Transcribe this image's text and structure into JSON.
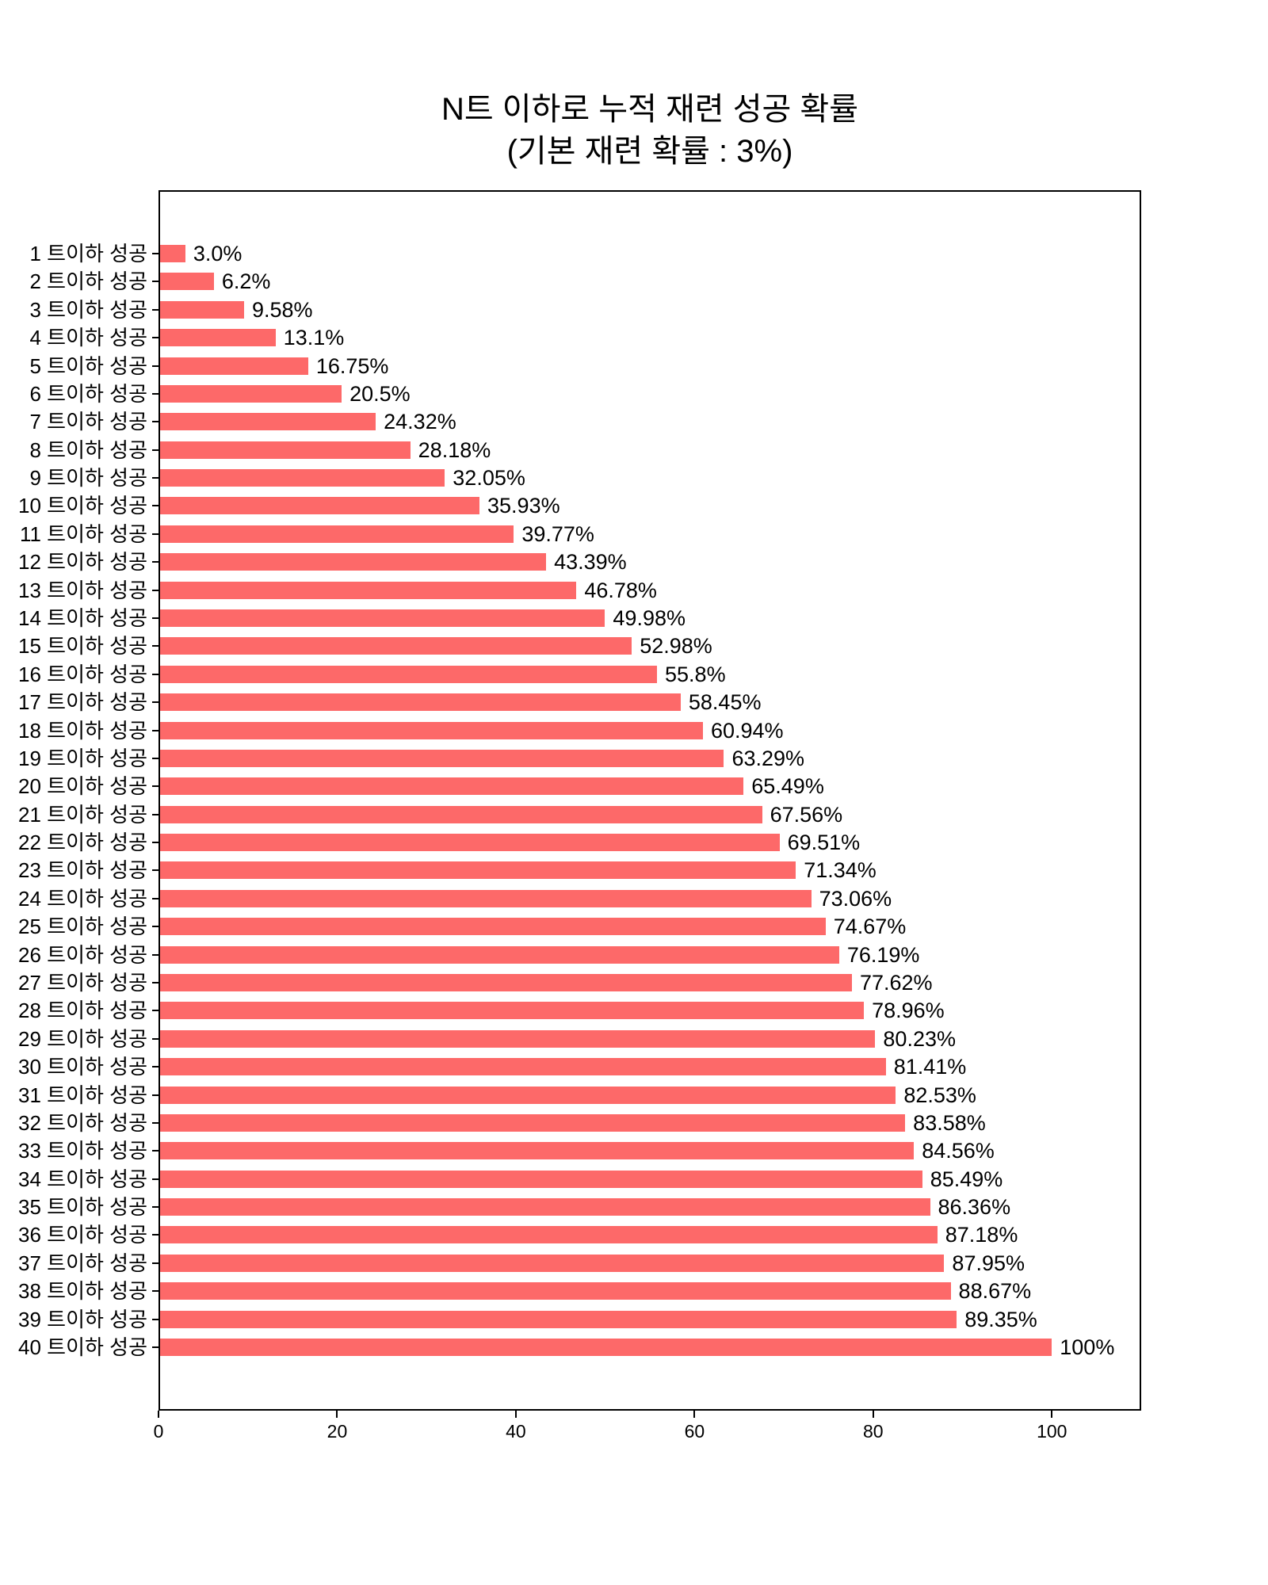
{
  "chart_data": {
    "type": "bar",
    "orientation": "horizontal",
    "title_line1": "N트 이하로 누적 재련 성공 확률",
    "title_line2": "(기본 재련 확률 : 3%)",
    "categories": [
      "1 트이하 성공",
      "2 트이하 성공",
      "3 트이하 성공",
      "4 트이하 성공",
      "5 트이하 성공",
      "6 트이하 성공",
      "7 트이하 성공",
      "8 트이하 성공",
      "9 트이하 성공",
      "10 트이하 성공",
      "11 트이하 성공",
      "12 트이하 성공",
      "13 트이하 성공",
      "14 트이하 성공",
      "15 트이하 성공",
      "16 트이하 성공",
      "17 트이하 성공",
      "18 트이하 성공",
      "19 트이하 성공",
      "20 트이하 성공",
      "21 트이하 성공",
      "22 트이하 성공",
      "23 트이하 성공",
      "24 트이하 성공",
      "25 트이하 성공",
      "26 트이하 성공",
      "27 트이하 성공",
      "28 트이하 성공",
      "29 트이하 성공",
      "30 트이하 성공",
      "31 트이하 성공",
      "32 트이하 성공",
      "33 트이하 성공",
      "34 트이하 성공",
      "35 트이하 성공",
      "36 트이하 성공",
      "37 트이하 성공",
      "38 트이하 성공",
      "39 트이하 성공",
      "40 트이하 성공"
    ],
    "values": [
      3.0,
      6.2,
      9.58,
      13.1,
      16.75,
      20.5,
      24.32,
      28.18,
      32.05,
      35.93,
      39.77,
      43.39,
      46.78,
      49.98,
      52.98,
      55.8,
      58.45,
      60.94,
      63.29,
      65.49,
      67.56,
      69.51,
      71.34,
      73.06,
      74.67,
      76.19,
      77.62,
      78.96,
      80.23,
      81.41,
      82.53,
      83.58,
      84.56,
      85.49,
      86.36,
      87.18,
      87.95,
      88.67,
      89.35,
      100
    ],
    "value_labels": [
      "3.0%",
      "6.2%",
      "9.58%",
      "13.1%",
      "16.75%",
      "20.5%",
      "24.32%",
      "28.18%",
      "32.05%",
      "35.93%",
      "39.77%",
      "43.39%",
      "46.78%",
      "49.98%",
      "52.98%",
      "55.8%",
      "58.45%",
      "60.94%",
      "63.29%",
      "65.49%",
      "67.56%",
      "69.51%",
      "71.34%",
      "73.06%",
      "74.67%",
      "76.19%",
      "77.62%",
      "78.96%",
      "80.23%",
      "81.41%",
      "82.53%",
      "83.58%",
      "84.56%",
      "85.49%",
      "86.36%",
      "87.18%",
      "87.95%",
      "88.67%",
      "89.35%",
      "100%"
    ],
    "x_ticks": [
      "0",
      "20",
      "40",
      "60",
      "80",
      "100"
    ],
    "x_tick_values": [
      0,
      20,
      40,
      60,
      80,
      100
    ],
    "xlim": [
      0,
      110
    ],
    "ylabel": "",
    "xlabel": "",
    "grid": false,
    "legend": false,
    "bar_color": "#FD6969",
    "text_color": "#000000",
    "axis_color": "#000000",
    "background_color": "#ffffff"
  }
}
